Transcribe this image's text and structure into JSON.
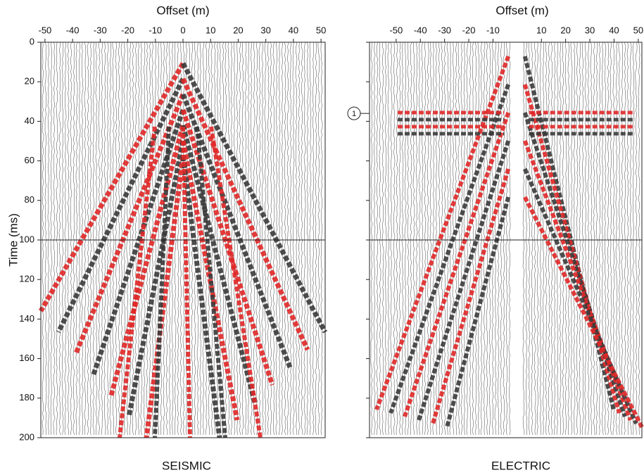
{
  "chart_data": [
    {
      "type": "wiggle",
      "title": "Offset (m)",
      "y_label": "Time (ms)",
      "caption": "SEISMIC",
      "xlim": [
        -51.5,
        51.5
      ],
      "xticks": [
        -50,
        -40,
        -30,
        -20,
        -10,
        0,
        10,
        20,
        30,
        40,
        50
      ],
      "ylim": [
        0,
        200
      ],
      "yticks": [
        0,
        20,
        40,
        60,
        80,
        100,
        120,
        140,
        160,
        180,
        200
      ],
      "ytick_labels": true,
      "reference_line": 100
    },
    {
      "type": "wiggle",
      "title": "Offset (m)",
      "caption": "ELECTRIC",
      "xlim": [
        -61,
        51.5
      ],
      "xticks": [
        -50,
        -40,
        -30,
        -20,
        -10,
        10,
        20,
        30,
        40,
        50
      ],
      "ylim": [
        0,
        200
      ],
      "yticks": [
        0,
        20,
        40,
        60,
        80,
        100,
        120,
        140,
        160,
        180,
        200
      ],
      "ytick_labels": false,
      "reference_line": 100,
      "annotation": {
        "text": "1",
        "y": 36
      }
    }
  ]
}
